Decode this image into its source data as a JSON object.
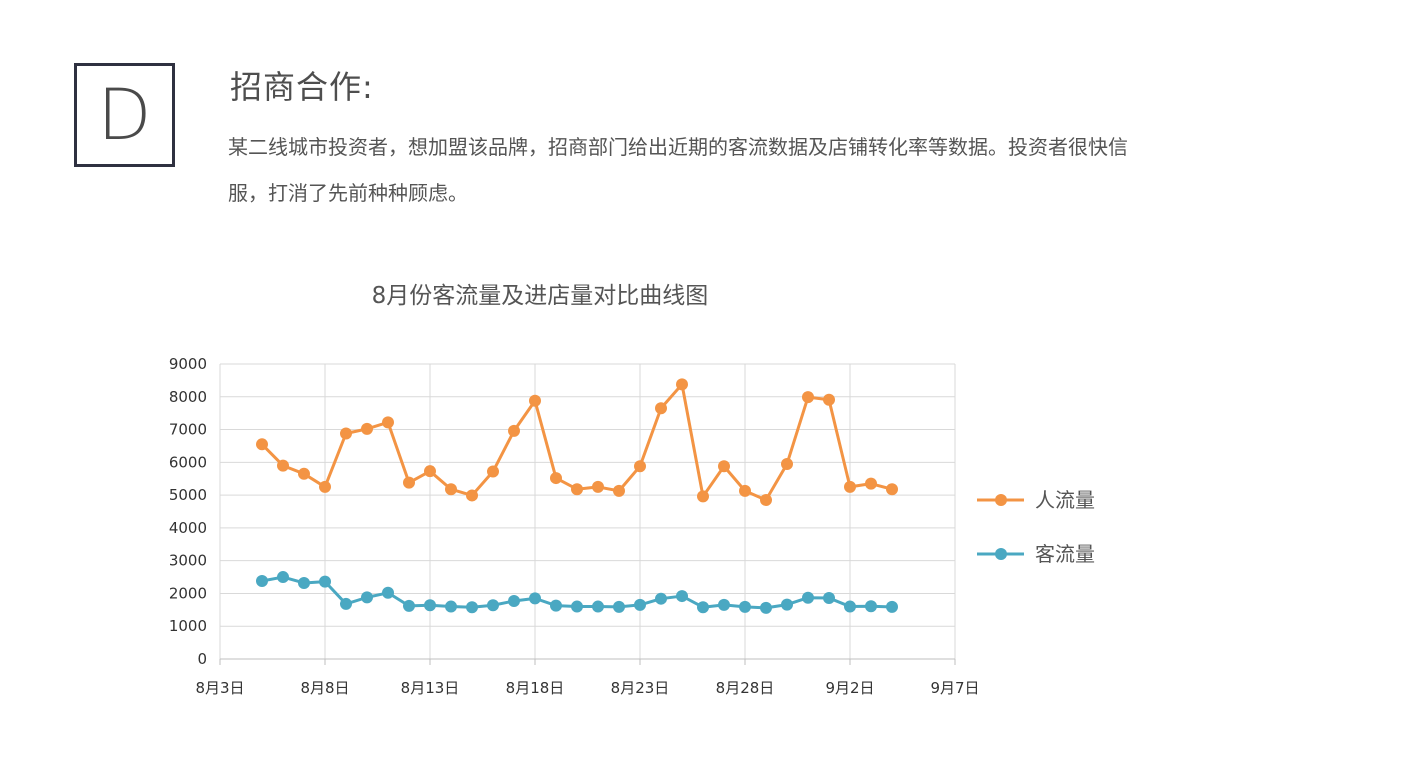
{
  "badge": "D",
  "section_title": "招商合作:",
  "description": "某二线城市投资者，想加盟该品牌，招商部门给出近期的客流数据及店铺转化率等数据。投资者很快信服，打消了先前种种顾虑。",
  "chart_data": {
    "type": "line",
    "title": "8月份客流量及进店量对比曲线图",
    "xlabel": "",
    "ylabel": "",
    "ylim": [
      0,
      9000
    ],
    "yticks": [
      "0",
      "1000",
      "2000",
      "3000",
      "4000",
      "5000",
      "6000",
      "7000",
      "8000",
      "9000"
    ],
    "xticks": [
      "8月3日",
      "8月8日",
      "8月13日",
      "8月18日",
      "8月23日",
      "8月28日",
      "9月2日",
      "9月7日"
    ],
    "x_range": [
      "2023-08-03",
      "2023-09-07"
    ],
    "grid": true,
    "legend_position": "right",
    "x": [
      "8月5日",
      "8月6日",
      "8月7日",
      "8月8日",
      "8月9日",
      "8月10日",
      "8月11日",
      "8月12日",
      "8月13日",
      "8月14日",
      "8月15日",
      "8月16日",
      "8月17日",
      "8月18日",
      "8月19日",
      "8月20日",
      "8月21日",
      "8月22日",
      "8月23日",
      "8月24日",
      "8月25日",
      "8月26日",
      "8月27日",
      "8月28日",
      "8月29日",
      "8月30日",
      "8月31日",
      "9月1日",
      "9月2日",
      "9月3日",
      "9月4日"
    ],
    "series": [
      {
        "name": "人流量",
        "color": "#f39444",
        "values": [
          6550,
          5900,
          5650,
          5250,
          6880,
          7020,
          7220,
          5380,
          5730,
          5180,
          4990,
          5720,
          6960,
          7880,
          5520,
          5180,
          5250,
          5130,
          5880,
          7650,
          8380,
          4960,
          5880,
          5130,
          4850,
          5950,
          7990,
          7910,
          5250,
          5350,
          5180
        ]
      },
      {
        "name": "客流量",
        "color": "#4aa8c2",
        "values": [
          2380,
          2500,
          2320,
          2360,
          1680,
          1880,
          2020,
          1620,
          1640,
          1600,
          1580,
          1640,
          1770,
          1850,
          1630,
          1600,
          1600,
          1590,
          1650,
          1840,
          1920,
          1580,
          1650,
          1590,
          1560,
          1660,
          1870,
          1860,
          1600,
          1610,
          1590
        ]
      }
    ]
  }
}
